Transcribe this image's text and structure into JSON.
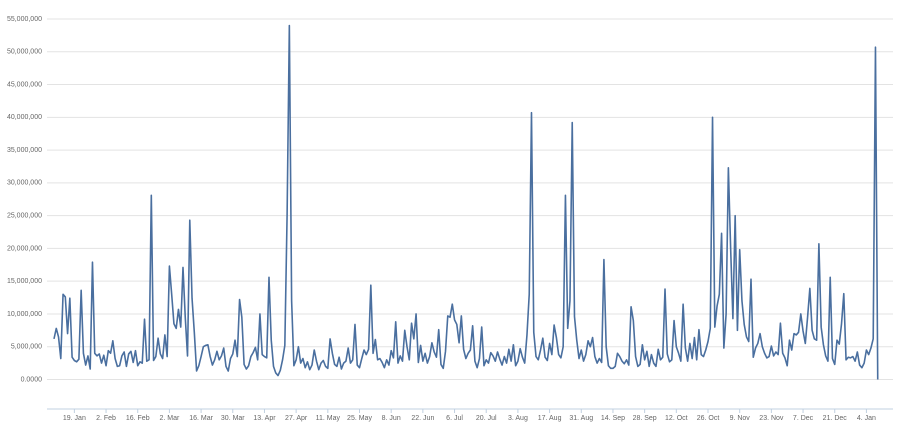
{
  "chart_data": {
    "type": "line",
    "color": "#4a6f9f",
    "grid": true,
    "ylim": [
      -4500000,
      55000000
    ],
    "yticks": [
      {
        "value": 0,
        "label": "0.0000"
      },
      {
        "value": 5000000,
        "label": "5,000,000"
      },
      {
        "value": 10000000,
        "label": "10,000,000"
      },
      {
        "value": 15000000,
        "label": "15,000,000"
      },
      {
        "value": 20000000,
        "label": "20,000,000"
      },
      {
        "value": 25000000,
        "label": "25,000,000"
      },
      {
        "value": 30000000,
        "label": "30,000,000"
      },
      {
        "value": 35000000,
        "label": "35,000,000"
      },
      {
        "value": 40000000,
        "label": "40,000,000"
      },
      {
        "value": 45000000,
        "label": "45,000,000"
      },
      {
        "value": 50000000,
        "label": "50,000,000"
      },
      {
        "value": 55000000,
        "label": "55,000,000"
      }
    ],
    "categories": [
      null,
      null,
      null,
      null,
      null,
      null,
      null,
      null,
      null,
      "19. Jan",
      null,
      null,
      null,
      null,
      null,
      null,
      null,
      null,
      null,
      null,
      null,
      null,
      null,
      "2. Feb",
      null,
      null,
      null,
      null,
      null,
      null,
      null,
      null,
      null,
      null,
      null,
      null,
      null,
      "16. Feb",
      null,
      null,
      null,
      null,
      null,
      null,
      null,
      null,
      null,
      null,
      null,
      null,
      null,
      "2. Mar",
      null,
      null,
      null,
      null,
      null,
      null,
      null,
      null,
      null,
      null,
      null,
      null,
      null,
      "16. Mar",
      null,
      null,
      null,
      null,
      null,
      null,
      null,
      null,
      null,
      null,
      null,
      null,
      null,
      "30. Mar",
      null,
      null,
      null,
      null,
      null,
      null,
      null,
      null,
      null,
      null,
      null,
      null,
      null,
      "13. Apr",
      null,
      null,
      null,
      null,
      null,
      null,
      null,
      null,
      null,
      null,
      null,
      null,
      null,
      "27. Apr",
      null,
      null,
      null,
      null,
      null,
      null,
      null,
      null,
      null,
      null,
      null,
      null,
      null,
      "11. May",
      null,
      null,
      null,
      null,
      null,
      null,
      null,
      null,
      null,
      null,
      null,
      null,
      null,
      "25. May",
      null,
      null,
      null,
      null,
      null,
      null,
      null,
      null,
      null,
      null,
      null,
      null,
      null,
      "8. Jun",
      null,
      null,
      null,
      null,
      null,
      null,
      null,
      null,
      null,
      null,
      null,
      null,
      null,
      "22. Jun",
      null,
      null,
      null,
      null,
      null,
      null,
      null,
      null,
      null,
      null,
      null,
      null,
      null,
      "6. Jul",
      null,
      null,
      null,
      null,
      null,
      null,
      null,
      null,
      null,
      null,
      null,
      null,
      null,
      "20. Jul",
      null,
      null,
      null,
      null,
      null,
      null,
      null,
      null,
      null,
      null,
      null,
      null,
      null,
      "3. Aug",
      null,
      null,
      null,
      null,
      null,
      null,
      null,
      null,
      null,
      null,
      null,
      null,
      null,
      "17. Aug",
      null,
      null,
      null,
      null,
      null,
      null,
      null,
      null,
      null,
      null,
      null,
      null,
      null,
      "31. Aug",
      null,
      null,
      null,
      null,
      null,
      null,
      null,
      null,
      null,
      null,
      null,
      null,
      null,
      "14. Sep",
      null,
      null,
      null,
      null,
      null,
      null,
      null,
      null,
      null,
      null,
      null,
      null,
      null,
      "28. Sep",
      null,
      null,
      null,
      null,
      null,
      null,
      null,
      null,
      null,
      null,
      null,
      null,
      null,
      "12. Oct",
      null,
      null,
      null,
      null,
      null,
      null,
      null,
      null,
      null,
      null,
      null,
      null,
      null,
      "26. Oct",
      null,
      null,
      null,
      null,
      null,
      null,
      null,
      null,
      null,
      null,
      null,
      null,
      null,
      "9. Nov",
      null,
      null,
      null,
      null,
      null,
      null,
      null,
      null,
      null,
      null,
      null,
      null,
      null,
      "23. Nov",
      null,
      null,
      null,
      null,
      null,
      null,
      null,
      null,
      null,
      null,
      null,
      null,
      null,
      "7. Dec",
      null,
      null,
      null,
      null,
      null,
      null,
      null,
      null,
      null,
      null,
      null,
      null,
      null,
      "21. Dec",
      null,
      null,
      null,
      null,
      null,
      null,
      null,
      null,
      null,
      null,
      null,
      null,
      null,
      "4. Jan",
      null,
      null,
      null,
      null,
      null
    ],
    "values": [
      6200000,
      7800000,
      6500000,
      3200000,
      13000000,
      12600000,
      7000000,
      12400000,
      3400000,
      2900000,
      2700000,
      3100000,
      13600000,
      4000000,
      2200000,
      3600000,
      1600000,
      17900000,
      4000000,
      3600000,
      3900000,
      2500000,
      3700000,
      2100000,
      4400000,
      4000000,
      5900000,
      3200000,
      2000000,
      2100000,
      3600000,
      4200000,
      2000000,
      3900000,
      4300000,
      2600000,
      4400000,
      2100000,
      2700000,
      2500000,
      9200000,
      2800000,
      3000000,
      28100000,
      2900000,
      3500000,
      6300000,
      3900000,
      3200000,
      6800000,
      3500000,
      17300000,
      13000000,
      8500000,
      7800000,
      10700000,
      8000000,
      17100000,
      9500000,
      3600000,
      24300000,
      12400000,
      7200000,
      1300000,
      2100000,
      3500000,
      5000000,
      5200000,
      5300000,
      3500000,
      2200000,
      3000000,
      4300000,
      3000000,
      3600000,
      4800000,
      2000000,
      1300000,
      3200000,
      3900000,
      6000000,
      3500000,
      12200000,
      9500000,
      2300000,
      1600000,
      2100000,
      3500000,
      4100000,
      4900000,
      3000000,
      10000000,
      3800000,
      3500000,
      3300000,
      15600000,
      6000000,
      2000000,
      1000000,
      600000,
      1400000,
      3000000,
      5200000,
      25000000,
      54000000,
      12000000,
      2100000,
      3000000,
      5000000,
      2500000,
      3200000,
      1800000,
      2700000,
      1500000,
      2200000,
      4500000,
      2800000,
      1500000,
      2500000,
      2900000,
      2000000,
      1700000,
      6200000,
      4000000,
      2300000,
      2000000,
      3400000,
      1600000,
      2500000,
      2800000,
      4800000,
      2500000,
      3000000,
      8400000,
      2200000,
      1800000,
      3200000,
      4500000,
      3800000,
      4600000,
      14400000,
      4000000,
      6100000,
      3000000,
      3200000,
      2600000,
      1800000,
      3000000,
      2200000,
      4400000,
      3300000,
      8800000,
      2500000,
      3600000,
      2800000,
      7500000,
      5000000,
      3000000,
      8600000,
      6200000,
      10000000,
      2600000,
      5200000,
      2800000,
      4000000,
      2500000,
      3500000,
      5600000,
      4200000,
      3400000,
      7600000,
      2300000,
      1700000,
      4300000,
      9700000,
      9500000,
      11500000,
      9100000,
      8400000,
      5600000,
      9700000,
      4600000,
      3200000,
      4000000,
      4500000,
      8200000,
      2800000,
      1800000,
      3200000,
      8000000,
      2100000,
      3000000,
      2500000,
      4100000,
      3600000,
      2800000,
      4200000,
      3100000,
      2200000,
      3500000,
      2500000,
      4600000,
      2800000,
      5300000,
      2100000,
      2800000,
      4700000,
      3400000,
      2500000,
      6800000,
      13000000,
      40700000,
      7200000,
      3500000,
      3000000,
      4500000,
      6300000,
      3400000,
      2900000,
      5500000,
      3800000,
      8300000,
      6400000,
      3800000,
      3300000,
      5000000,
      28100000,
      7800000,
      12000000,
      39200000,
      9600000,
      6000000,
      3200000,
      4500000,
      2800000,
      3800000,
      5900000,
      5000000,
      6400000,
      3500000,
      2500000,
      3200000,
      2600000,
      18300000,
      5000000,
      2100000,
      1700000,
      1700000,
      2000000,
      4000000,
      3500000,
      2800000,
      2400000,
      3000000,
      2200000,
      11100000,
      9000000,
      3500000,
      2000000,
      2300000,
      5300000,
      3000000,
      4300000,
      2000000,
      3800000,
      2500000,
      2000000,
      4600000,
      3000000,
      3400000,
      13800000,
      3900000,
      2700000,
      3000000,
      9000000,
      5000000,
      4000000,
      2800000,
      11500000,
      4800000,
      2800000,
      5500000,
      3200000,
      6400000,
      3000000,
      7600000,
      3800000,
      3500000,
      4500000,
      5800000,
      7800000,
      40000000,
      8000000,
      11200000,
      13000000,
      22300000,
      4800000,
      10000000,
      32300000,
      20000000,
      9300000,
      25000000,
      7500000,
      19800000,
      12000000,
      8400000,
      6500000,
      5800000,
      15300000,
      3400000,
      4800000,
      5500000,
      7000000,
      5000000,
      4000000,
      3300000,
      3500000,
      5100000,
      3600000,
      4200000,
      3800000,
      8600000,
      4000000,
      3300000,
      2100000,
      6000000,
      4500000,
      7000000,
      6800000,
      7200000,
      10000000,
      7400000,
      5500000,
      9500000,
      13900000,
      7500000,
      6200000,
      6000000,
      20700000,
      8000000,
      5300000,
      3600000,
      2800000,
      15600000,
      3200000,
      2300000,
      6000000,
      5400000,
      8500000,
      13100000,
      3000000,
      3400000,
      3300000,
      3500000,
      2800000,
      4200000,
      2200000,
      1800000,
      2500000,
      4500000,
      3800000,
      4800000,
      6200000,
      50700000,
      0
    ]
  }
}
